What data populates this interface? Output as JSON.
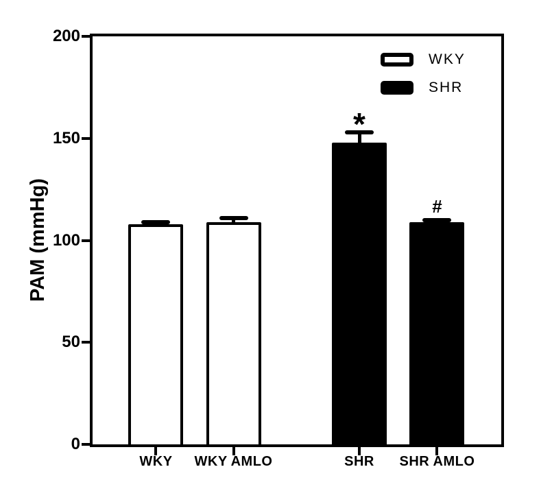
{
  "figure": {
    "background_color": "#ffffff",
    "foreground_color": "#000000"
  },
  "chart_data": {
    "type": "bar",
    "title": "",
    "xlabel": "",
    "ylabel": "PAM (mmHg)",
    "categories": [
      "WKY",
      "WKY AMLO",
      "SHR",
      "SHR AMLO"
    ],
    "values": [
      108,
      109,
      148,
      109
    ],
    "errors_upper": [
      2,
      3,
      6,
      2
    ],
    "annotations": [
      "",
      "",
      "*",
      "#"
    ],
    "bar_fills": [
      "#ffffff",
      "#ffffff",
      "#000000",
      "#000000"
    ],
    "bar_edge_color": "#000000",
    "ylim": [
      0,
      200
    ],
    "yticks": [
      0,
      50,
      100,
      150,
      200
    ],
    "grid": false,
    "legend": {
      "position": "top-right",
      "items": [
        {
          "label": "WKY",
          "fill": "#ffffff"
        },
        {
          "label": "SHR",
          "fill": "#000000"
        }
      ]
    }
  }
}
